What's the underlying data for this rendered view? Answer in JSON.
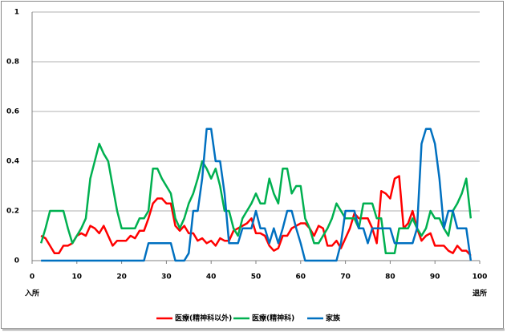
{
  "chart_data": {
    "type": "line",
    "start_label": "入所",
    "end_label": "退所",
    "x": [
      2,
      3,
      4,
      5,
      6,
      7,
      8,
      9,
      10,
      11,
      12,
      13,
      14,
      15,
      16,
      17,
      18,
      19,
      20,
      21,
      22,
      23,
      24,
      25,
      26,
      27,
      28,
      29,
      30,
      31,
      32,
      33,
      34,
      35,
      36,
      37,
      38,
      39,
      40,
      41,
      42,
      43,
      44,
      45,
      46,
      47,
      48,
      49,
      50,
      51,
      52,
      53,
      54,
      55,
      56,
      57,
      58,
      59,
      60,
      61,
      62,
      63,
      64,
      65,
      66,
      67,
      68,
      69,
      70,
      71,
      72,
      73,
      74,
      75,
      76,
      77,
      78,
      79,
      80,
      81,
      82,
      83,
      84,
      85,
      86,
      87,
      88,
      89,
      90,
      91,
      92,
      93,
      94,
      95,
      96,
      97,
      98
    ],
    "series": [
      {
        "name": "医療(精神科以外)",
        "color": "#ff0000",
        "values": [
          0.1,
          0.09,
          0.06,
          0.03,
          0.03,
          0.06,
          0.06,
          0.07,
          0.1,
          0.11,
          0.1,
          0.14,
          0.13,
          0.11,
          0.14,
          0.1,
          0.06,
          0.08,
          0.08,
          0.08,
          0.1,
          0.09,
          0.12,
          0.12,
          0.17,
          0.23,
          0.25,
          0.25,
          0.23,
          0.23,
          0.14,
          0.12,
          0.14,
          0.11,
          0.11,
          0.08,
          0.09,
          0.07,
          0.08,
          0.06,
          0.09,
          0.08,
          0.08,
          0.12,
          0.13,
          0.14,
          0.15,
          0.17,
          0.11,
          0.11,
          0.1,
          0.06,
          0.04,
          0.05,
          0.1,
          0.1,
          0.13,
          0.14,
          0.15,
          0.15,
          0.13,
          0.1,
          0.14,
          0.13,
          0.06,
          0.06,
          0.08,
          0.05,
          0.09,
          0.13,
          0.19,
          0.17,
          0.17,
          0.17,
          0.13,
          0.07,
          0.28,
          0.27,
          0.25,
          0.33,
          0.34,
          0.13,
          0.15,
          0.2,
          0.13,
          0.08,
          0.1,
          0.11,
          0.06,
          0.06,
          0.06,
          0.04,
          0.03,
          0.06,
          0.04,
          0.04,
          0.02
        ]
      },
      {
        "name": "医療(精神科)",
        "color": "#00b050",
        "values": [
          0.07,
          0.13,
          0.2,
          0.2,
          0.2,
          0.2,
          0.13,
          0.07,
          0.1,
          0.13,
          0.17,
          0.33,
          0.4,
          0.47,
          0.43,
          0.4,
          0.3,
          0.2,
          0.13,
          0.13,
          0.13,
          0.13,
          0.17,
          0.17,
          0.2,
          0.37,
          0.37,
          0.33,
          0.3,
          0.27,
          0.17,
          0.13,
          0.17,
          0.23,
          0.27,
          0.33,
          0.4,
          0.37,
          0.33,
          0.37,
          0.3,
          0.2,
          0.2,
          0.13,
          0.1,
          0.17,
          0.2,
          0.23,
          0.27,
          0.23,
          0.23,
          0.33,
          0.27,
          0.23,
          0.37,
          0.37,
          0.27,
          0.3,
          0.3,
          0.17,
          0.13,
          0.07,
          0.07,
          0.1,
          0.13,
          0.17,
          0.23,
          0.2,
          0.17,
          0.17,
          0.17,
          0.13,
          0.23,
          0.23,
          0.23,
          0.17,
          0.17,
          0.03,
          0.03,
          0.03,
          0.13,
          0.13,
          0.13,
          0.17,
          0.13,
          0.1,
          0.13,
          0.2,
          0.17,
          0.17,
          0.13,
          0.1,
          0.2,
          0.23,
          0.27,
          0.33,
          0.17
        ]
      },
      {
        "name": "家族",
        "color": "#0070c0",
        "values": [
          0,
          0,
          0,
          0,
          0,
          0,
          0,
          0,
          0,
          0,
          0,
          0,
          0,
          0,
          0,
          0,
          0,
          0,
          0,
          0,
          0,
          0,
          0,
          0,
          0.07,
          0.07,
          0.07,
          0.07,
          0.07,
          0.07,
          0,
          0,
          0,
          0.03,
          0.2,
          0.2,
          0.33,
          0.53,
          0.53,
          0.4,
          0.4,
          0.27,
          0.07,
          0.07,
          0.07,
          0.13,
          0.13,
          0.13,
          0.2,
          0.13,
          0.13,
          0.07,
          0.13,
          0.07,
          0.13,
          0.2,
          0.2,
          0.13,
          0.07,
          0,
          0,
          0,
          0,
          0,
          0,
          0,
          0,
          0.07,
          0.2,
          0.2,
          0.2,
          0.13,
          0.13,
          0.07,
          0.13,
          0.13,
          0.13,
          0.13,
          0.13,
          0.07,
          0.07,
          0.07,
          0.07,
          0.07,
          0.13,
          0.47,
          0.53,
          0.53,
          0.47,
          0.33,
          0.13,
          0.2,
          0.2,
          0.13,
          0.13,
          0.13,
          0
        ]
      }
    ],
    "xlim": [
      0,
      100
    ],
    "xticks": [
      0,
      10,
      20,
      30,
      40,
      50,
      60,
      70,
      80,
      90,
      100
    ],
    "ylim": [
      0,
      1
    ],
    "yticks": [
      0,
      0.2,
      0.4,
      0.6,
      0.8,
      1
    ],
    "grid": true
  }
}
